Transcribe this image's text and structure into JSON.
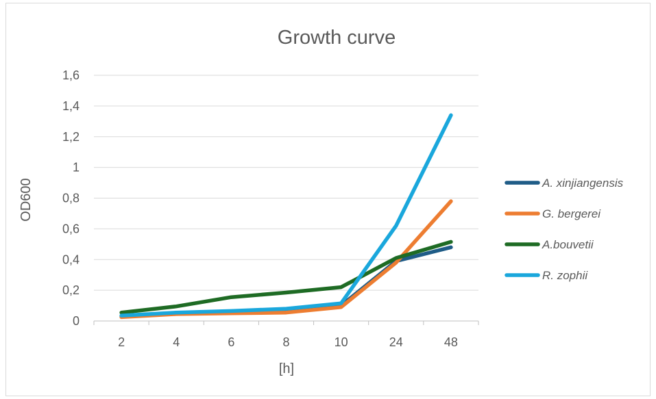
{
  "chart_data": {
    "type": "line",
    "title": "Growth curve",
    "xlabel": "[h]",
    "ylabel": "OD600",
    "categories": [
      "2",
      "4",
      "6",
      "8",
      "10",
      "24",
      "48"
    ],
    "ylim": [
      0,
      1.6
    ],
    "yticks": [
      "0",
      "0,2",
      "0,4",
      "0,6",
      "0,8",
      "1",
      "1,2",
      "1,4",
      "1,6"
    ],
    "grid": true,
    "legend_position": "right",
    "series": [
      {
        "name": "A. xinjiangensis",
        "color": "#1f5c87",
        "values": [
          0.03,
          0.05,
          0.06,
          0.07,
          0.1,
          0.39,
          0.48
        ]
      },
      {
        "name": "G. bergerei",
        "color": "#ed7d31",
        "values": [
          0.025,
          0.045,
          0.05,
          0.055,
          0.09,
          0.38,
          0.78
        ]
      },
      {
        "name": "A.bouvetii",
        "color": "#1e6b24",
        "values": [
          0.055,
          0.095,
          0.155,
          0.185,
          0.22,
          0.41,
          0.515
        ]
      },
      {
        "name": "R. zophii",
        "color": "#1aa7dc",
        "values": [
          0.035,
          0.055,
          0.065,
          0.08,
          0.115,
          0.62,
          1.34
        ]
      }
    ]
  }
}
